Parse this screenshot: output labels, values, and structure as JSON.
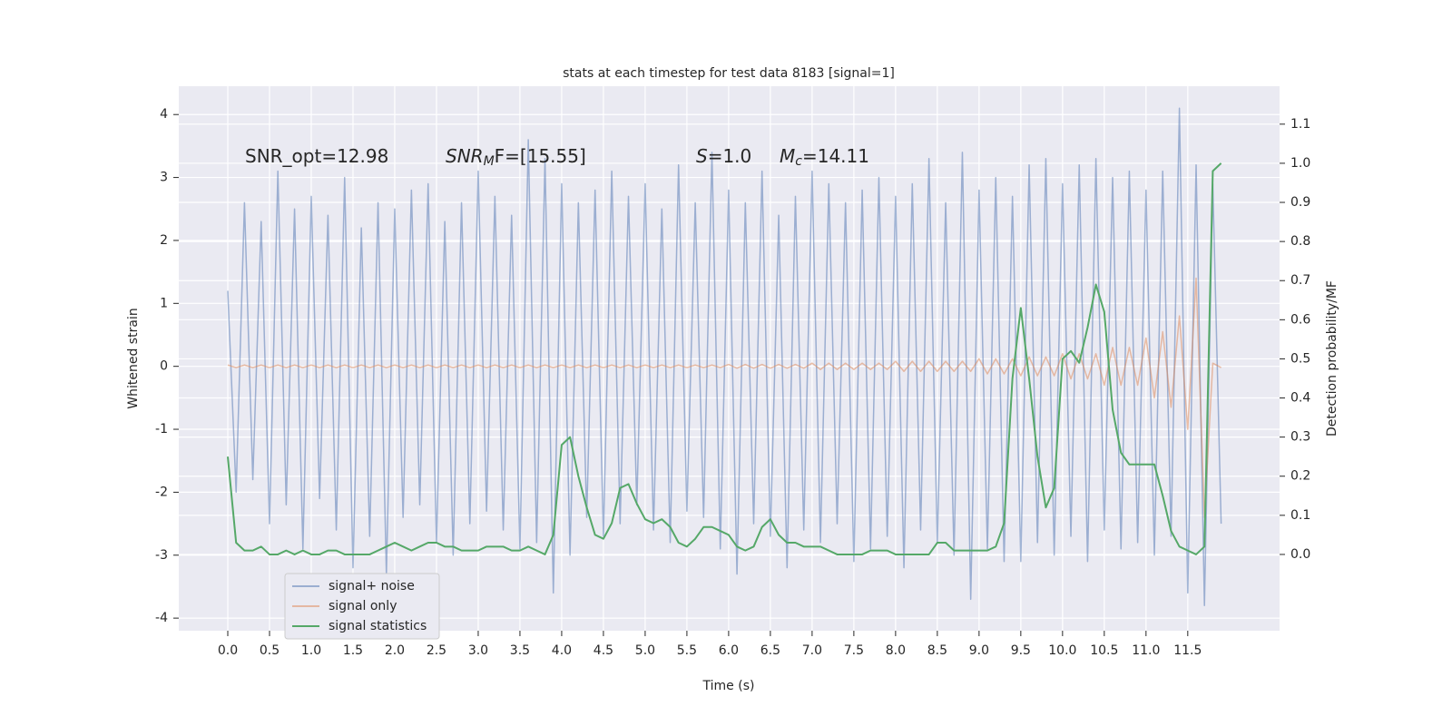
{
  "chart_data": {
    "type": "line",
    "title": "stats at each timestep for test data 8183 [signal=1]",
    "x_label": "Time (s)",
    "y_label": "Whitened strain",
    "y2_label": "Detection probability/MF",
    "annotations": [
      {
        "main": "SNR_opt=12.98"
      },
      {
        "main": "SNR",
        "sub": "M",
        "rest": "F=[15.55]"
      },
      {
        "main": "S",
        "rest": "=1.0"
      },
      {
        "main": "M",
        "sub": "c",
        "rest": "=14.11"
      }
    ],
    "grid": true,
    "legend": "lower left",
    "xlim": [
      -0.587,
      12.6
    ],
    "ylim": [
      -4.2,
      4.45
    ],
    "y2lim": [
      -0.195,
      1.197
    ],
    "xticks": [
      {
        "value": 0,
        "label": "0.0"
      },
      0.5,
      {
        "value": 1,
        "label": "1.0"
      },
      1.5,
      {
        "value": 2,
        "label": "2.0"
      },
      2.5,
      {
        "value": 3,
        "label": "3.0"
      },
      3.5,
      {
        "value": 4,
        "label": "4.0"
      },
      4.5,
      {
        "value": 5,
        "label": "5.0"
      },
      5.5,
      {
        "value": 6,
        "label": "6.0"
      },
      6.5,
      {
        "value": 7,
        "label": "7.0"
      },
      7.5,
      {
        "value": 8,
        "label": "8.0"
      },
      8.5,
      {
        "value": 9,
        "label": "9.0"
      },
      9.5,
      {
        "value": 10,
        "label": "10.0"
      },
      10.5,
      {
        "value": 11,
        "label": "11.0"
      },
      11.5
    ],
    "yticks": [
      -4,
      -3,
      -2,
      -1,
      0,
      1,
      2,
      3,
      4
    ],
    "y2ticks": [
      {
        "value": 0,
        "label": "0.0"
      },
      0.1,
      0.2,
      0.3,
      0.4,
      0.5,
      0.6,
      0.7,
      0.8,
      0.9,
      {
        "value": 1,
        "label": "1.0"
      },
      1.1
    ],
    "x": [
      0.0,
      0.1,
      0.2,
      0.3,
      0.4,
      0.5,
      0.6,
      0.7,
      0.8,
      0.9,
      1.0,
      1.1,
      1.2,
      1.3,
      1.4,
      1.5,
      1.6,
      1.7,
      1.8,
      1.9,
      2.0,
      2.1,
      2.2,
      2.3,
      2.4,
      2.5,
      2.6,
      2.7,
      2.8,
      2.9,
      3.0,
      3.1,
      3.2,
      3.3,
      3.4,
      3.5,
      3.6,
      3.7,
      3.8,
      3.9,
      4.0,
      4.1,
      4.2,
      4.3,
      4.4,
      4.5,
      4.6,
      4.7,
      4.8,
      4.9,
      5.0,
      5.1,
      5.2,
      5.3,
      5.4,
      5.5,
      5.6,
      5.7,
      5.8,
      5.9,
      6.0,
      6.1,
      6.2,
      6.3,
      6.4,
      6.5,
      6.6,
      6.7,
      6.8,
      6.9,
      7.0,
      7.1,
      7.2,
      7.3,
      7.4,
      7.5,
      7.6,
      7.7,
      7.8,
      7.9,
      8.0,
      8.1,
      8.2,
      8.3,
      8.4,
      8.5,
      8.6,
      8.7,
      8.8,
      8.9,
      9.0,
      9.1,
      9.2,
      9.3,
      9.4,
      9.5,
      9.6,
      9.7,
      9.8,
      9.9,
      10.0,
      10.1,
      10.2,
      10.3,
      10.4,
      10.5,
      10.6,
      10.7,
      10.8,
      10.9,
      11.0,
      11.1,
      11.2,
      11.3,
      11.4,
      11.5,
      11.6,
      11.7,
      11.8,
      11.9
    ],
    "series": [
      {
        "name": "signal+ noise",
        "color": "#4c72b0",
        "alpha": 0.5,
        "values": [
          1.2,
          -2.0,
          2.6,
          -1.8,
          2.3,
          -2.5,
          3.1,
          -2.2,
          2.5,
          -2.9,
          2.7,
          -2.1,
          2.4,
          -2.6,
          3.0,
          -3.2,
          2.2,
          -2.7,
          2.6,
          -3.3,
          2.5,
          -2.4,
          2.8,
          -2.2,
          2.9,
          -2.8,
          2.3,
          -3.0,
          2.6,
          -2.5,
          3.1,
          -2.3,
          2.7,
          -2.6,
          2.4,
          -2.9,
          3.6,
          -2.8,
          3.3,
          -3.6,
          2.9,
          -3.0,
          2.6,
          -2.4,
          2.8,
          -2.7,
          3.1,
          -2.5,
          2.7,
          -2.2,
          2.9,
          -2.6,
          2.5,
          -2.8,
          3.2,
          -2.3,
          2.6,
          -2.4,
          3.4,
          -2.9,
          2.8,
          -3.3,
          2.6,
          -2.5,
          3.1,
          -2.7,
          2.4,
          -3.2,
          2.7,
          -2.6,
          3.1,
          -2.8,
          2.9,
          -2.5,
          2.6,
          -3.1,
          2.8,
          -2.9,
          3.0,
          -2.7,
          2.7,
          -3.2,
          2.9,
          -2.6,
          3.3,
          -2.8,
          2.6,
          -3.0,
          3.4,
          -3.7,
          2.8,
          -2.9,
          3.0,
          -3.1,
          2.7,
          -3.1,
          3.2,
          -2.8,
          3.3,
          -3.0,
          2.9,
          -2.7,
          3.2,
          -3.1,
          3.3,
          -2.6,
          3.0,
          -2.9,
          3.1,
          -2.8,
          2.8,
          -3.0,
          3.1,
          -2.7,
          4.1,
          -3.6,
          3.2,
          -3.8,
          2.9,
          -2.5
        ]
      },
      {
        "name": "signal only",
        "color": "#dd8452",
        "alpha": 0.5,
        "values": [
          0.02,
          -0.02,
          0.02,
          -0.02,
          0.02,
          -0.02,
          0.02,
          -0.02,
          0.02,
          -0.02,
          0.02,
          -0.02,
          0.02,
          -0.02,
          0.02,
          -0.02,
          0.02,
          -0.02,
          0.02,
          -0.02,
          0.02,
          -0.02,
          0.02,
          -0.02,
          0.02,
          -0.02,
          0.02,
          -0.02,
          0.02,
          -0.02,
          0.02,
          -0.02,
          0.02,
          -0.02,
          0.02,
          -0.02,
          0.02,
          -0.02,
          0.02,
          -0.02,
          0.02,
          -0.02,
          0.02,
          -0.02,
          0.02,
          -0.02,
          0.02,
          -0.02,
          0.02,
          -0.02,
          0.02,
          -0.02,
          0.02,
          -0.02,
          0.02,
          -0.02,
          0.02,
          -0.02,
          0.02,
          -0.02,
          0.03,
          -0.03,
          0.03,
          -0.03,
          0.03,
          -0.03,
          0.03,
          -0.03,
          0.03,
          -0.03,
          0.05,
          -0.05,
          0.05,
          -0.05,
          0.05,
          -0.05,
          0.05,
          -0.05,
          0.05,
          -0.05,
          0.08,
          -0.08,
          0.08,
          -0.08,
          0.08,
          -0.08,
          0.08,
          -0.08,
          0.08,
          -0.08,
          0.12,
          -0.12,
          0.12,
          -0.12,
          0.12,
          -0.15,
          0.15,
          -0.15,
          0.15,
          -0.15,
          0.2,
          -0.2,
          0.2,
          -0.2,
          0.2,
          -0.3,
          0.3,
          -0.3,
          0.3,
          -0.3,
          0.45,
          -0.5,
          0.55,
          -0.65,
          0.8,
          -1.0,
          1.4,
          -2.4,
          0.05,
          -0.02
        ]
      },
      {
        "name": "signal statistics",
        "color": "#55a868",
        "alpha": 1,
        "axis": "y2",
        "values": [
          0.25,
          0.03,
          0.01,
          0.01,
          0.02,
          0.0,
          0.0,
          0.01,
          0.0,
          0.01,
          0.0,
          0.0,
          0.01,
          0.01,
          0.0,
          0.0,
          0.0,
          0.0,
          0.01,
          0.02,
          0.03,
          0.02,
          0.01,
          0.02,
          0.03,
          0.03,
          0.02,
          0.02,
          0.01,
          0.01,
          0.01,
          0.02,
          0.02,
          0.02,
          0.01,
          0.01,
          0.02,
          0.01,
          0.0,
          0.05,
          0.28,
          0.3,
          0.2,
          0.12,
          0.05,
          0.04,
          0.08,
          0.17,
          0.18,
          0.13,
          0.09,
          0.08,
          0.09,
          0.07,
          0.03,
          0.02,
          0.04,
          0.07,
          0.07,
          0.06,
          0.05,
          0.02,
          0.01,
          0.02,
          0.07,
          0.09,
          0.05,
          0.03,
          0.03,
          0.02,
          0.02,
          0.02,
          0.01,
          0.0,
          0.0,
          0.0,
          0.0,
          0.01,
          0.01,
          0.01,
          0.0,
          0.0,
          0.0,
          0.0,
          0.0,
          0.03,
          0.03,
          0.01,
          0.01,
          0.01,
          0.01,
          0.01,
          0.02,
          0.08,
          0.45,
          0.63,
          0.45,
          0.25,
          0.12,
          0.17,
          0.5,
          0.52,
          0.49,
          0.58,
          0.69,
          0.62,
          0.37,
          0.26,
          0.23,
          0.23,
          0.23,
          0.23,
          0.15,
          0.06,
          0.02,
          0.01,
          0.0,
          0.02,
          0.98,
          1.0
        ]
      }
    ]
  }
}
